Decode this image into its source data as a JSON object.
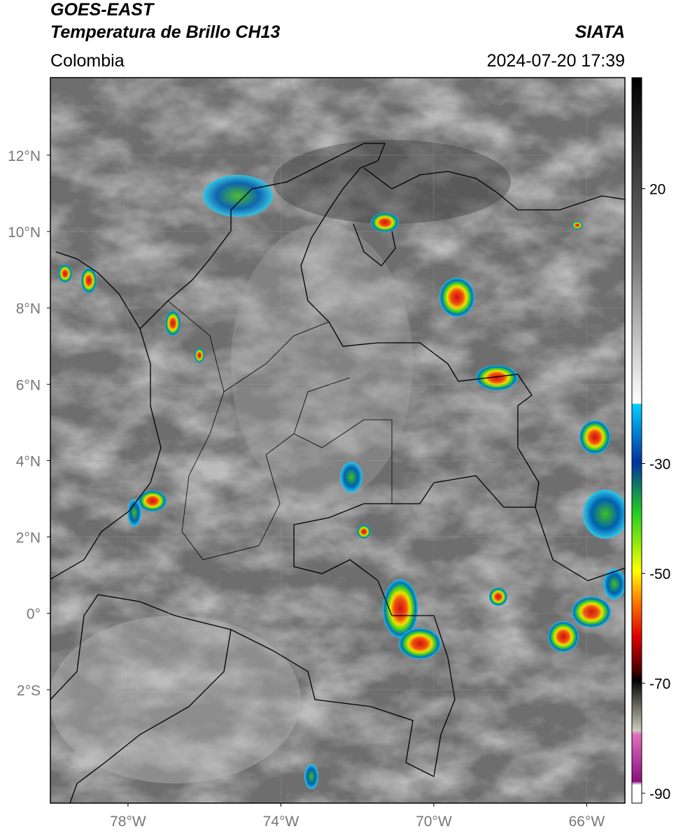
{
  "header": {
    "title_line1": "GOES-EAST",
    "title_line2": "Temperatura de Brillo CH13",
    "source": "SIATA",
    "region": "Colombia",
    "datetime": "2024-07-20 17:39"
  },
  "map": {
    "xlim": [
      -80.03,
      -65.0
    ],
    "ylim": [
      -4.97,
      14.03
    ],
    "xticks": [
      {
        "value": -78,
        "label": "78°W"
      },
      {
        "value": -74,
        "label": "74°W"
      },
      {
        "value": -70,
        "label": "70°W"
      },
      {
        "value": -66,
        "label": "66°W"
      }
    ],
    "yticks": [
      {
        "value": 12,
        "label": "12°N"
      },
      {
        "value": 10,
        "label": "10°N"
      },
      {
        "value": 8,
        "label": "8°N"
      },
      {
        "value": 6,
        "label": "6°N"
      },
      {
        "value": 4,
        "label": "4°N"
      },
      {
        "value": 2,
        "label": "2°N"
      },
      {
        "value": 0,
        "label": "0°"
      },
      {
        "value": -2,
        "label": "2°S"
      }
    ],
    "grid": true
  },
  "colorbar": {
    "lim": [
      40.2,
      -91.8
    ],
    "ticks": [
      20,
      -30,
      -50,
      -70,
      -90
    ]
  }
}
